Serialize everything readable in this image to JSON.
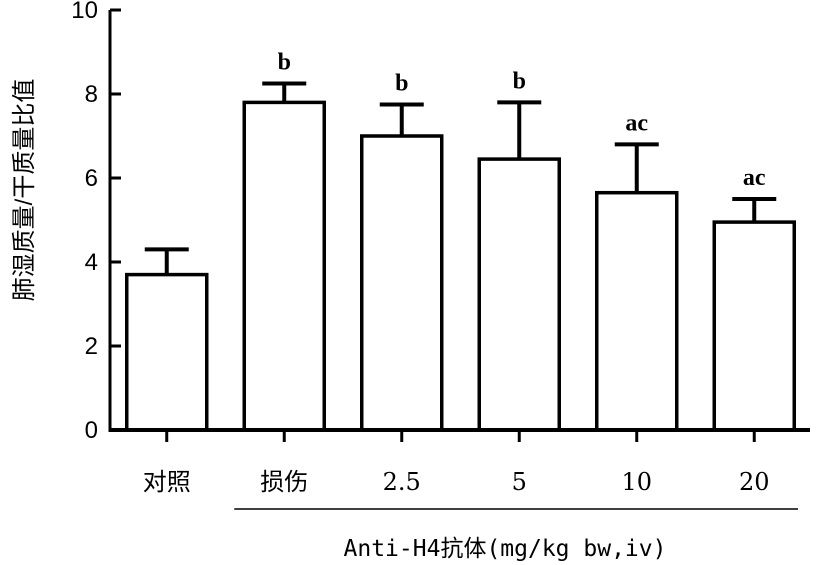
{
  "chart_data": {
    "type": "bar",
    "title": "",
    "ylabel": "肺湿质量/干质量比值",
    "xlabel": "Anti-H4抗体(mg/kg bw,iv)",
    "ylim": [
      0,
      10
    ],
    "yticks": [
      "0",
      "2",
      "4",
      "6",
      "8",
      "10"
    ],
    "categories": [
      "对照",
      "损伤",
      "2.5",
      "5",
      "10",
      "20"
    ],
    "values": [
      3.7,
      7.8,
      7.0,
      6.45,
      5.65,
      4.95
    ],
    "error_upper": [
      0.6,
      0.45,
      0.75,
      1.35,
      1.15,
      0.55
    ],
    "annotations": [
      "",
      "b",
      "b",
      "b",
      "ac",
      "ac"
    ],
    "grouped_categories_from_index": 2
  }
}
